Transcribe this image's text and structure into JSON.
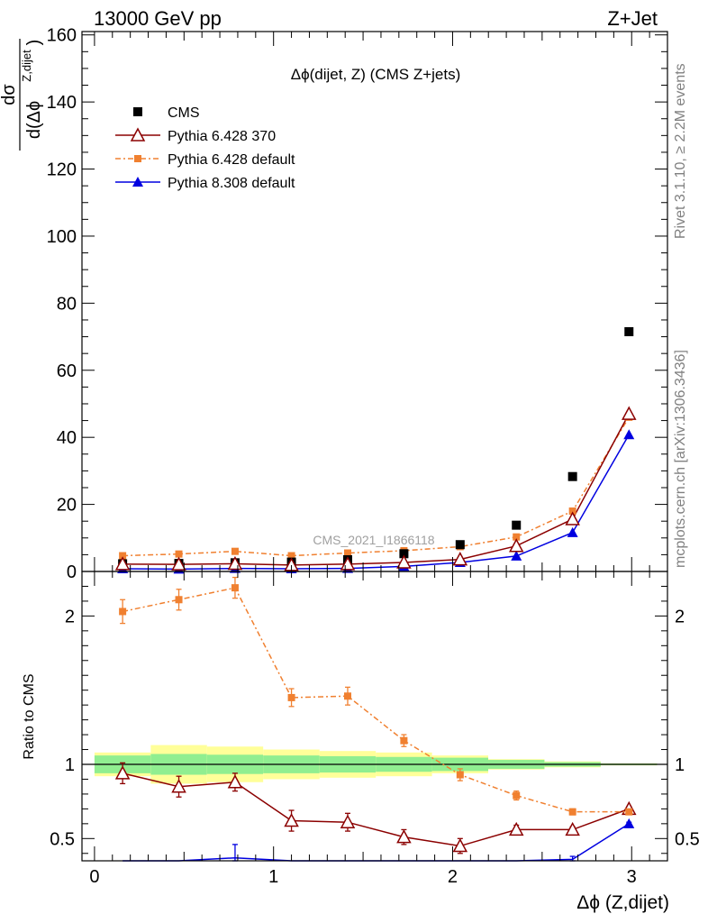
{
  "header": {
    "left": "13000 GeV pp",
    "right": "Z+Jet"
  },
  "side_labels": {
    "rivet": "Rivet 3.1.10, ≥ 2.2M events",
    "mcplots": "mcplots.cern.ch [arXiv:1306.3436]"
  },
  "watermark": "CMS_2021_I1866118",
  "colors": {
    "cms": "#000000",
    "p6_370": "#8b0000",
    "p6_default": "#f08030",
    "p8_default": "#0000e0",
    "band_inner": "#90ee90",
    "band_outer": "#ffff99"
  },
  "chart_data": [
    {
      "type": "line",
      "title": "Δϕ(dijet, Z) (CMS Z+jets)",
      "ylabel": "dσ / d(Δϕ^{Z,dijet})",
      "ylabel_num": "dσ",
      "ylabel_den": "d(Δϕ",
      "ylabel_sup": "Z,dijet",
      "ylabel_close": ")",
      "xlim": [
        -0.07,
        3.2
      ],
      "ylim": [
        0,
        161
      ],
      "yticks": [
        0,
        20,
        40,
        60,
        80,
        100,
        120,
        140,
        160
      ],
      "legend_position": "top-left",
      "x": [
        0.157,
        0.471,
        0.785,
        1.1,
        1.414,
        1.728,
        2.042,
        2.356,
        2.67,
        2.985
      ],
      "series": [
        {
          "name": "CMS",
          "marker": "square",
          "values": [
            2.3,
            2.4,
            2.6,
            2.8,
            3.5,
            5.3,
            8.0,
            13.8,
            28.3,
            71.5
          ]
        },
        {
          "name": "Pythia 6.428 370",
          "marker": "open-triangle",
          "values": [
            2.2,
            2.1,
            2.3,
            1.9,
            2.2,
            2.7,
            3.6,
            7.6,
            15.6,
            47.0
          ]
        },
        {
          "name": "Pythia 6.428 default",
          "marker": "square-dashdot",
          "values": [
            4.7,
            5.2,
            6.0,
            4.7,
            5.5,
            6.2,
            7.4,
            10.3,
            18.0,
            46.0
          ]
        },
        {
          "name": "Pythia 8.308 default",
          "marker": "filled-triangle",
          "values": [
            0.8,
            0.7,
            0.9,
            0.8,
            0.9,
            1.5,
            2.7,
            4.6,
            11.6,
            40.8
          ]
        }
      ]
    },
    {
      "type": "line",
      "ylabel": "Ratio to CMS",
      "xlabel": "Δϕ (Z,dijet)",
      "xlim": [
        -0.07,
        3.2
      ],
      "ylim": [
        0.35,
        2.3
      ],
      "xticks": [
        0,
        1,
        2,
        3
      ],
      "yticks": [
        0.5,
        1,
        2
      ],
      "x": [
        0.157,
        0.471,
        0.785,
        1.1,
        1.414,
        1.728,
        2.042,
        2.356,
        2.67,
        2.985
      ],
      "band_edges": [
        0,
        0.314,
        0.628,
        0.942,
        1.257,
        1.571,
        1.885,
        2.199,
        2.513,
        2.827,
        3.142
      ],
      "band_inner": [
        0.06,
        0.07,
        0.065,
        0.06,
        0.055,
        0.05,
        0.045,
        0.03,
        0.015,
        0.005
      ],
      "band_outer": [
        0.08,
        0.13,
        0.12,
        0.1,
        0.09,
        0.08,
        0.06,
        0.035,
        0.02,
        0.007
      ],
      "series": [
        {
          "name": "Pythia 6.428 370",
          "values": [
            0.94,
            0.85,
            0.88,
            0.62,
            0.61,
            0.51,
            0.45,
            0.56,
            0.56,
            0.7
          ],
          "errors": [
            0.07,
            0.07,
            0.06,
            0.07,
            0.06,
            0.05,
            0.05,
            0.03,
            0.02,
            0.01
          ]
        },
        {
          "name": "Pythia 6.428 default",
          "values": [
            2.03,
            2.11,
            2.19,
            1.45,
            1.46,
            1.16,
            0.93,
            0.79,
            0.68,
            0.68
          ],
          "errors": [
            0.08,
            0.07,
            0.07,
            0.06,
            0.06,
            0.04,
            0.04,
            0.03,
            0.02,
            0.01
          ]
        },
        {
          "name": "Pythia 8.308 default",
          "values": [
            0.34,
            0.3,
            0.37,
            0.3,
            0.3,
            0.3,
            0.3,
            0.3,
            0.36,
            0.6
          ],
          "errors": [
            0.1,
            0.0,
            0.09,
            0.0,
            0.0,
            0.0,
            0.0,
            0.0,
            0.02,
            0.01
          ]
        }
      ]
    }
  ]
}
